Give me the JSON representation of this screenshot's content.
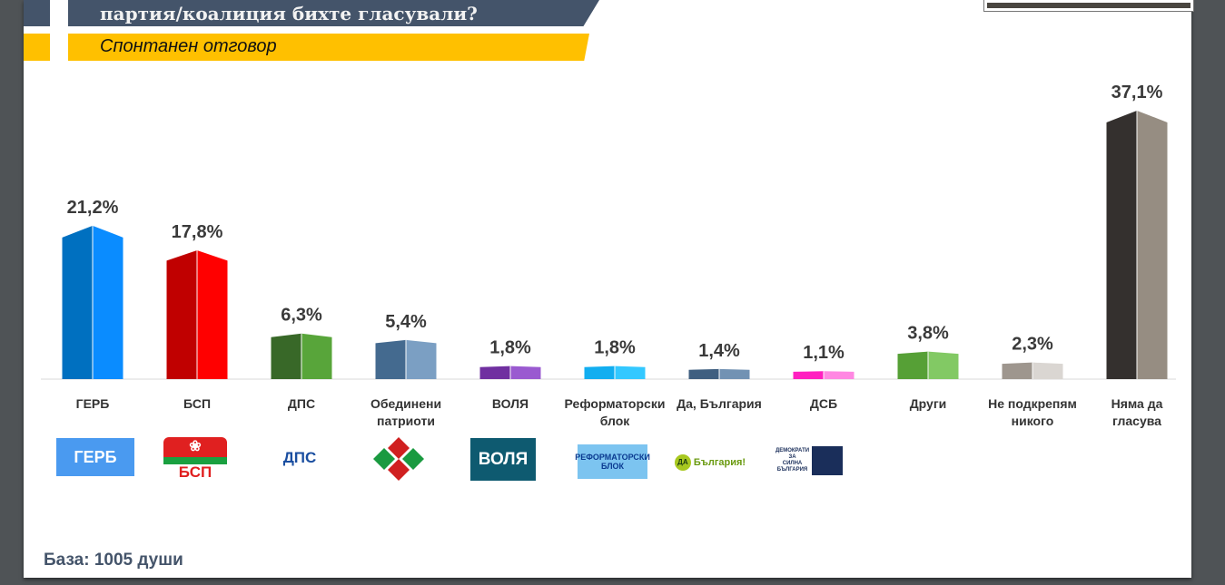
{
  "header": {
    "title": "партия/коалиция бихте гласували?",
    "subtitle": "Спонтанен отговор"
  },
  "footer": {
    "base": "База: 1005 души"
  },
  "logos": [
    "ГЕРБ",
    "БСП",
    "ДПС",
    "",
    "ВОЛЯ",
    "РЕФОРМАТОРСКИ БЛОК",
    "ДА България!",
    "ДЕМОКРАТИ ЗА СИЛНА БЪЛГАРИЯ"
  ],
  "chart_data": {
    "type": "bar",
    "title": "партия/коалиция бихте гласували?",
    "subtitle": "Спонтанен отговор",
    "unit": "%",
    "categories": [
      "ГЕРБ",
      "БСП",
      "ДПС",
      "Обединени патриоти",
      "ВОЛЯ",
      "Реформаторски блок",
      "Да, България",
      "ДСБ",
      "Други",
      "Не подкрепям никого",
      "Няма да гласува"
    ],
    "category_lines": [
      [
        "ГЕРБ"
      ],
      [
        "БСП"
      ],
      [
        "ДПС"
      ],
      [
        "Обединени",
        "патриоти"
      ],
      [
        "ВОЛЯ"
      ],
      [
        "Реформаторски",
        "блок"
      ],
      [
        "Да, България"
      ],
      [
        "ДСБ"
      ],
      [
        "Други"
      ],
      [
        "Не подкрепям",
        "никого"
      ],
      [
        "Няма да",
        "гласува"
      ]
    ],
    "values": [
      21.2,
      17.8,
      6.3,
      5.4,
      1.8,
      1.8,
      1.4,
      1.1,
      3.8,
      2.3,
      37.1
    ],
    "labels": [
      "21,2%",
      "17,8%",
      "6,3%",
      "5,4%",
      "1,8%",
      "1,8%",
      "1,4%",
      "1,1%",
      "3,8%",
      "2,3%",
      "37,1%"
    ],
    "colors": [
      [
        "#0070c0",
        "#0a8cff"
      ],
      [
        "#c00000",
        "#ff0000"
      ],
      [
        "#386828",
        "#58a53a"
      ],
      [
        "#446a8f",
        "#7b9fc3"
      ],
      [
        "#7030a0",
        "#9a5ad0"
      ],
      [
        "#12aef0",
        "#33c8ff"
      ],
      [
        "#3f5f80",
        "#7292b3"
      ],
      [
        "#ff20c0",
        "#ff88e2"
      ],
      [
        "#56a036",
        "#82c964"
      ],
      [
        "#9e968e",
        "#dad6d2"
      ],
      [
        "#34302e",
        "#968d82"
      ]
    ],
    "ylim": [
      0,
      40
    ],
    "grid": false,
    "legend": "none"
  }
}
